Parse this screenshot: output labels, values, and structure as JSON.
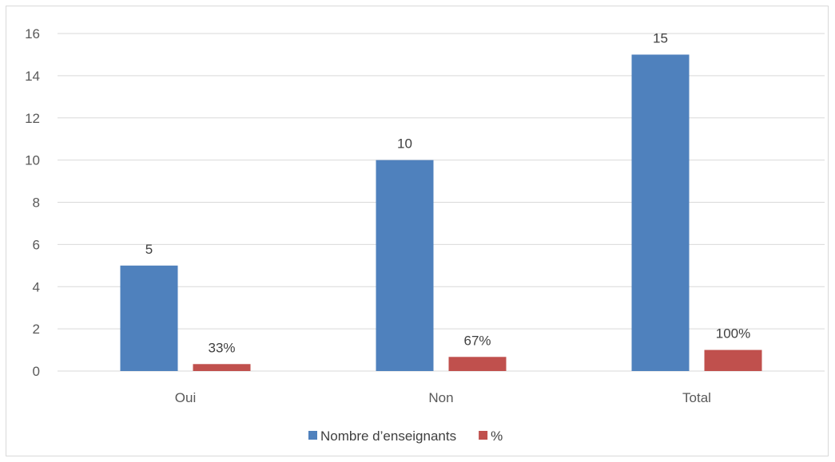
{
  "chart_data": {
    "type": "bar",
    "categories": [
      "Oui",
      "Non",
      "Total"
    ],
    "ylim": [
      0,
      16
    ],
    "yticks": [
      0,
      2,
      4,
      6,
      8,
      10,
      12,
      14,
      16
    ],
    "grid": true,
    "legend_position": "bottom",
    "series": [
      {
        "name": "Nombre d’enseignants",
        "values": [
          5,
          10,
          15
        ],
        "labels": [
          "5",
          "10",
          "15"
        ],
        "color": "#4f81bd"
      },
      {
        "name": "%",
        "values": [
          0.33,
          0.67,
          1.0
        ],
        "labels": [
          "33%",
          "67%",
          "100%"
        ],
        "color": "#c0504d"
      }
    ]
  }
}
